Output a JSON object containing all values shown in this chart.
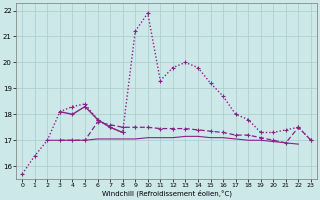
{
  "xlabel": "Windchill (Refroidissement éolien,°C)",
  "ylabel": "",
  "xlim": [
    -0.5,
    23.5
  ],
  "ylim": [
    15.5,
    22.3
  ],
  "yticks": [
    16,
    17,
    18,
    19,
    20,
    21,
    22
  ],
  "xticks": [
    0,
    1,
    2,
    3,
    4,
    5,
    6,
    7,
    8,
    9,
    10,
    11,
    12,
    13,
    14,
    15,
    16,
    17,
    18,
    19,
    20,
    21,
    22,
    23
  ],
  "bg_color": "#cde8e8",
  "grid_color": "#aacccc",
  "line_color": "#882288",
  "series": [
    {
      "x": [
        0,
        1,
        2,
        3,
        4,
        5,
        6,
        7,
        8,
        9,
        10,
        11,
        12,
        13,
        14,
        15,
        16,
        17,
        18,
        19,
        20,
        21,
        22,
        23
      ],
      "y": [
        15.7,
        16.4,
        17.0,
        18.1,
        18.3,
        18.4,
        17.8,
        17.5,
        17.3,
        21.2,
        21.9,
        19.3,
        19.8,
        20.0,
        19.8,
        19.2,
        18.7,
        18.0,
        17.8,
        17.3,
        17.3,
        17.4,
        17.5,
        17.0
      ],
      "style": "dotted",
      "marker": "+",
      "lw": 1.0
    },
    {
      "x": [
        3,
        4,
        5,
        6,
        7,
        8
      ],
      "y": [
        18.1,
        18.0,
        18.3,
        17.8,
        17.5,
        17.3
      ],
      "style": "solid",
      "marker": "+",
      "lw": 1.0
    },
    {
      "x": [
        2,
        3,
        4,
        5,
        6,
        7,
        8,
        9,
        10,
        11,
        12,
        13,
        14,
        15,
        16,
        17,
        18,
        19,
        20,
        21,
        22
      ],
      "y": [
        17.0,
        17.0,
        17.0,
        17.0,
        17.05,
        17.05,
        17.05,
        17.05,
        17.1,
        17.1,
        17.1,
        17.15,
        17.15,
        17.1,
        17.1,
        17.05,
        17.0,
        17.0,
        16.95,
        16.9,
        16.85
      ],
      "style": "solid",
      "marker": null,
      "lw": 0.8
    },
    {
      "x": [
        3,
        4,
        5,
        6,
        7,
        8,
        9,
        10,
        11,
        12,
        13,
        14,
        15,
        16,
        17,
        18,
        19,
        20,
        21,
        22,
        23
      ],
      "y": [
        17.0,
        17.0,
        17.0,
        17.7,
        17.6,
        17.5,
        17.5,
        17.5,
        17.45,
        17.45,
        17.45,
        17.4,
        17.35,
        17.3,
        17.2,
        17.2,
        17.1,
        17.0,
        16.9,
        17.5,
        17.0
      ],
      "style": "dashed",
      "marker": "+",
      "lw": 0.9
    }
  ]
}
